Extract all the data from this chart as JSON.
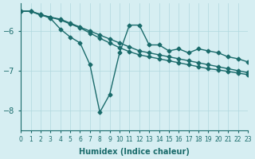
{
  "xlabel": "Humidex (Indice chaleur)",
  "bg_color": "#d6eef2",
  "line_color": "#1a6b6b",
  "grid_color": "#b0d8de",
  "xlim": [
    0,
    23
  ],
  "ylim": [
    -8.5,
    -5.3
  ],
  "yticks": [
    -8,
    -7,
    -6
  ],
  "xticks": [
    0,
    1,
    2,
    3,
    4,
    5,
    6,
    7,
    8,
    9,
    10,
    11,
    12,
    13,
    14,
    15,
    16,
    17,
    18,
    19,
    20,
    21,
    22,
    23
  ],
  "line1_x": [
    0,
    1,
    2,
    3,
    4,
    5,
    6,
    7,
    8,
    9,
    10,
    11,
    12,
    13,
    14,
    15,
    16,
    17,
    18,
    19,
    20,
    21,
    22,
    23
  ],
  "line1_y": [
    -5.5,
    -5.5,
    -5.6,
    -5.65,
    -5.7,
    -5.8,
    -5.9,
    -6.0,
    -6.1,
    -6.2,
    -6.3,
    -6.4,
    -6.5,
    -6.55,
    -6.6,
    -6.65,
    -6.7,
    -6.75,
    -6.8,
    -6.85,
    -6.9,
    -6.95,
    -7.0,
    -7.05
  ],
  "line2_x": [
    0,
    1,
    2,
    3,
    4,
    5,
    6,
    7,
    8,
    9,
    10,
    11,
    12,
    13,
    14,
    15,
    16,
    17,
    18,
    19,
    20,
    21,
    22,
    23
  ],
  "line2_y": [
    -5.5,
    -5.5,
    -5.58,
    -5.65,
    -5.72,
    -5.82,
    -5.92,
    -6.05,
    -6.18,
    -6.3,
    -6.42,
    -6.52,
    -6.6,
    -6.65,
    -6.7,
    -6.75,
    -6.8,
    -6.85,
    -6.9,
    -6.95,
    -6.98,
    -7.02,
    -7.06,
    -7.1
  ],
  "line3_x": [
    0,
    1,
    2,
    3,
    4,
    5,
    6,
    7,
    8,
    9,
    10,
    11,
    12,
    13,
    14,
    15,
    16,
    17,
    18,
    19,
    20,
    21,
    22,
    23
  ],
  "line3_y": [
    -5.5,
    -5.5,
    -5.58,
    -5.68,
    -5.95,
    -6.15,
    -6.3,
    -6.85,
    -8.05,
    -7.6,
    -6.55,
    -5.85,
    -5.85,
    -6.35,
    -6.35,
    -6.5,
    -6.45,
    -6.55,
    -6.45,
    -6.5,
    -6.55,
    -6.65,
    -6.7,
    -6.78
  ],
  "marker": "D",
  "marker_size": 2.5,
  "linewidth": 1.0
}
